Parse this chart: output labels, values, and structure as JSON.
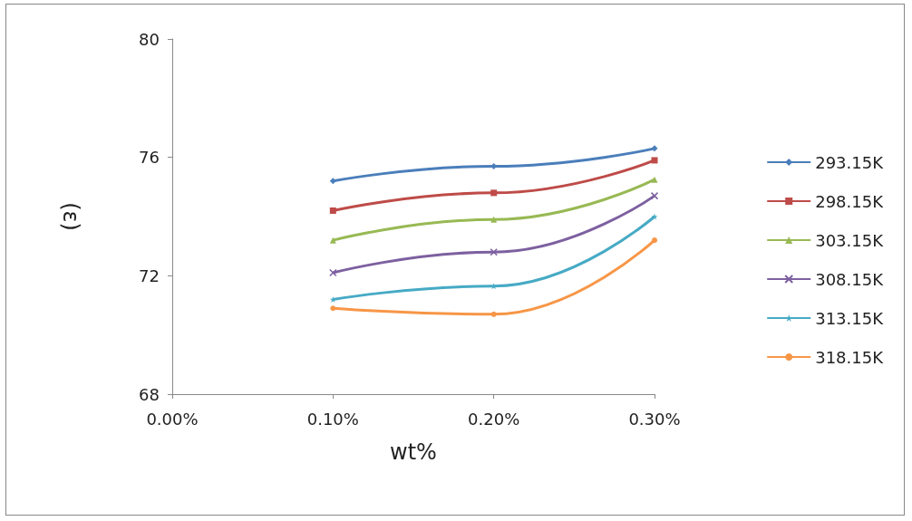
{
  "chart_data": {
    "type": "line",
    "xlabel": "wt%",
    "ylabel": "(ε)",
    "x": [
      0.1,
      0.2,
      0.3
    ],
    "xlim": [
      0,
      0.3
    ],
    "xticks": [
      {
        "value": 0,
        "label": "0.00%"
      },
      {
        "value": 0.1,
        "label": "0.10%"
      },
      {
        "value": 0.2,
        "label": "0.20%"
      },
      {
        "value": 0.3,
        "label": "0.30%"
      }
    ],
    "ylim": [
      68,
      80
    ],
    "yticks": [
      68,
      72,
      76,
      80
    ],
    "grid": false,
    "legend": "right",
    "series": [
      {
        "name": "293.15K",
        "color": "#4a7ebb",
        "marker": "diamond",
        "values": [
          75.2,
          75.7,
          76.3
        ]
      },
      {
        "name": "298.15K",
        "color": "#be4b48",
        "marker": "square",
        "values": [
          74.2,
          74.8,
          75.9
        ]
      },
      {
        "name": "303.15K",
        "color": "#98b954",
        "marker": "triangle",
        "values": [
          73.2,
          73.9,
          75.25
        ]
      },
      {
        "name": "308.15K",
        "color": "#7d60a0",
        "marker": "cross",
        "values": [
          72.1,
          72.8,
          74.7
        ]
      },
      {
        "name": "313.15K",
        "color": "#46aac5",
        "marker": "star",
        "values": [
          71.2,
          71.65,
          74.0
        ]
      },
      {
        "name": "318.15K",
        "color": "#f79646",
        "marker": "circle",
        "values": [
          70.9,
          70.7,
          73.2
        ]
      }
    ]
  }
}
